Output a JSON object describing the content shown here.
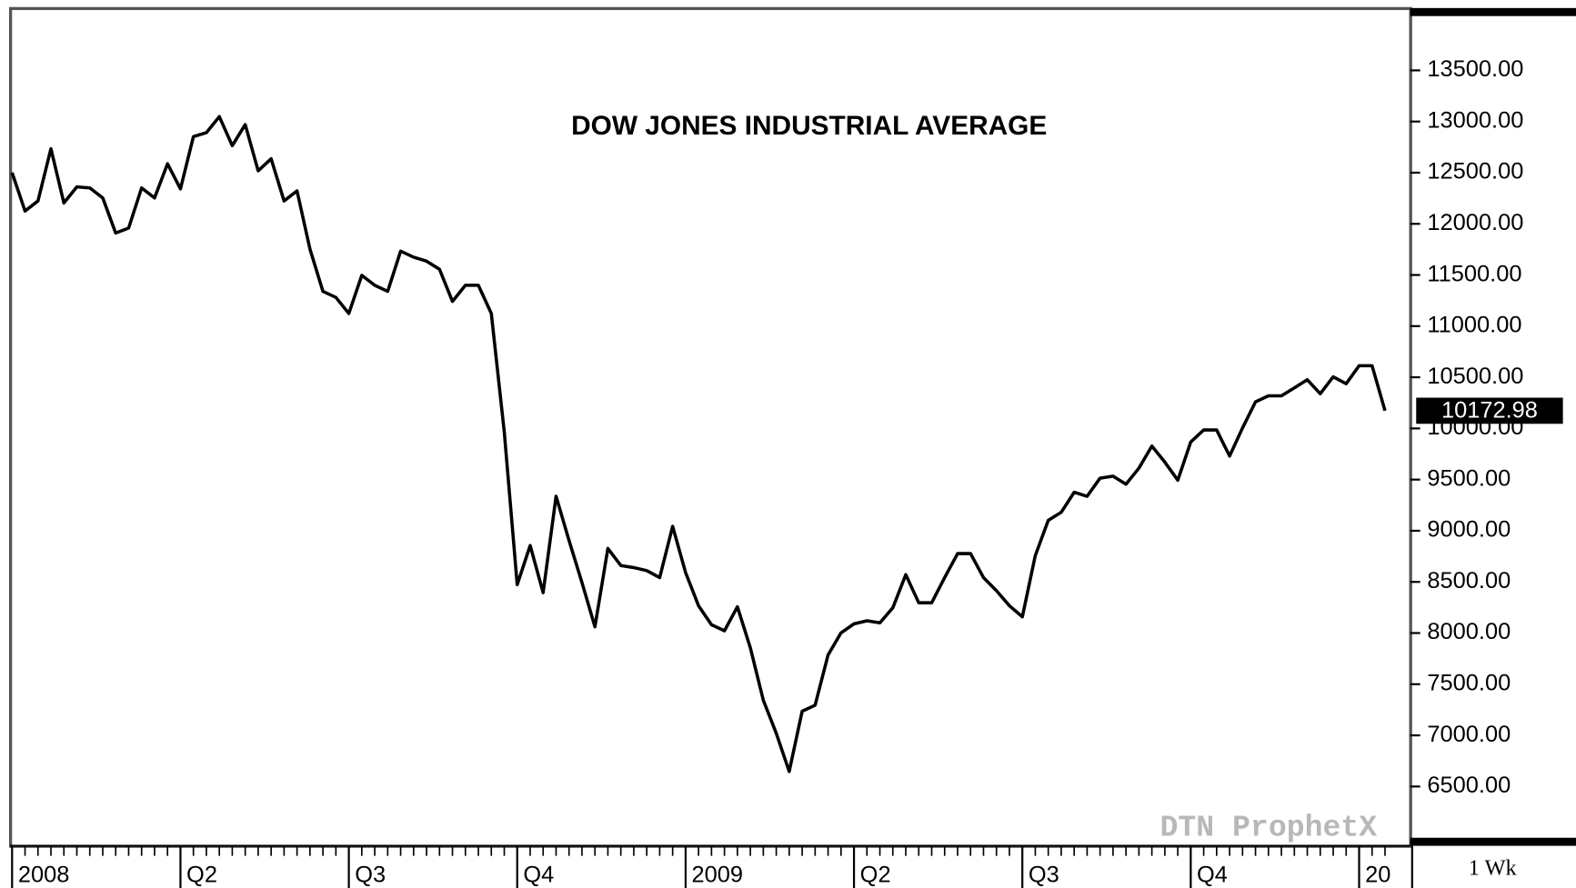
{
  "chart_data": {
    "type": "line",
    "title": "DOW JONES INDUSTRIAL AVERAGE",
    "watermark": "DTN ProphetX",
    "interval": "1 Wk",
    "color": "#000000",
    "categories": [
      "2008",
      null,
      null,
      null,
      null,
      null,
      null,
      null,
      null,
      null,
      null,
      null,
      null,
      "Q2",
      null,
      null,
      null,
      null,
      null,
      null,
      null,
      null,
      null,
      null,
      null,
      null,
      "Q3",
      null,
      null,
      null,
      null,
      null,
      null,
      null,
      null,
      null,
      null,
      null,
      null,
      "Q4",
      null,
      null,
      null,
      null,
      null,
      null,
      null,
      null,
      null,
      null,
      null,
      null,
      "2009",
      null,
      null,
      null,
      null,
      null,
      null,
      null,
      null,
      null,
      null,
      null,
      null,
      "Q2",
      null,
      null,
      null,
      null,
      null,
      null,
      null,
      null,
      null,
      null,
      null,
      null,
      "Q3",
      null,
      null,
      null,
      null,
      null,
      null,
      null,
      null,
      null,
      null,
      null,
      null,
      "Q4",
      null,
      null,
      null,
      null,
      null,
      null,
      null,
      null,
      null,
      null,
      null,
      null,
      "20",
      null,
      null
    ],
    "values": [
      12500,
      12125,
      12224,
      12734,
      12204,
      12361,
      12351,
      12253,
      11910,
      11959,
      12351,
      12253,
      12587,
      12342,
      12852,
      12891,
      13048,
      12764,
      12970,
      12518,
      12636,
      12224,
      12322,
      11752,
      11340,
      11281,
      11124,
      11497,
      11399,
      11340,
      11733,
      11674,
      11635,
      11556,
      11242,
      11399,
      11399,
      11124,
      9966,
      8473,
      8856,
      8395,
      9337,
      8905,
      8493,
      8061,
      8827,
      8660,
      8640,
      8610,
      8542,
      9043,
      8591,
      8267,
      8081,
      8022,
      8257,
      7855,
      7344,
      7020,
      6647,
      7236,
      7295,
      7786,
      8002,
      8090,
      8120,
      8100,
      8247,
      8571,
      8296,
      8296,
      8542,
      8777,
      8777,
      8542,
      8414,
      8267,
      8159,
      8758,
      9102,
      9180,
      9376,
      9337,
      9514,
      9534,
      9455,
      9612,
      9828,
      9671,
      9494,
      9867,
      9985,
      9985,
      9730,
      10005,
      10260,
      10319,
      10319,
      10397,
      10476,
      10339,
      10505,
      10437,
      10613,
      10613,
      10172.98
    ],
    "ylim": [
      5940,
      14070
    ],
    "yticks": [
      {
        "value": 6500,
        "label": "6500.00"
      },
      {
        "value": 7000,
        "label": "7000.00"
      },
      {
        "value": 7500,
        "label": "7500.00"
      },
      {
        "value": 8000,
        "label": "8000.00"
      },
      {
        "value": 8500,
        "label": "8500.00"
      },
      {
        "value": 9000,
        "label": "9000.00"
      },
      {
        "value": 9500,
        "label": "9500.00"
      },
      {
        "value": 10000,
        "label": "10000.00"
      },
      {
        "value": 10500,
        "label": "10500.00"
      },
      {
        "value": 11000,
        "label": "11000.00"
      },
      {
        "value": 11500,
        "label": "11500.00"
      },
      {
        "value": 12000,
        "label": "12000.00"
      },
      {
        "value": 12500,
        "label": "12500.00"
      },
      {
        "value": 13000,
        "label": "13000.00"
      },
      {
        "value": 13500,
        "label": "13500.00"
      }
    ],
    "grid": false,
    "last_value_label": true
  }
}
